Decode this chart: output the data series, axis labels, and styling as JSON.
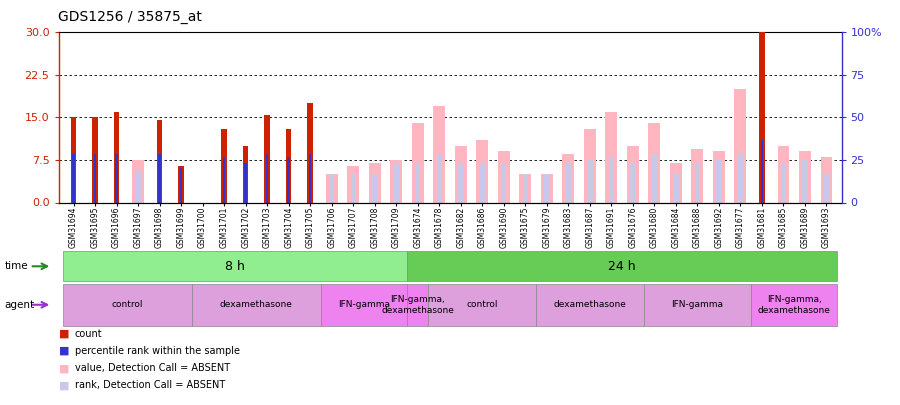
{
  "title": "GDS1256 / 35875_at",
  "samples": [
    "GSM31694",
    "GSM31695",
    "GSM31696",
    "GSM31697",
    "GSM31698",
    "GSM31699",
    "GSM31700",
    "GSM31701",
    "GSM31702",
    "GSM31703",
    "GSM31704",
    "GSM31705",
    "GSM31706",
    "GSM31707",
    "GSM31708",
    "GSM31709",
    "GSM31674",
    "GSM31678",
    "GSM31682",
    "GSM31686",
    "GSM31690",
    "GSM31675",
    "GSM31679",
    "GSM31683",
    "GSM31687",
    "GSM31691",
    "GSM31676",
    "GSM31680",
    "GSM31684",
    "GSM31688",
    "GSM31692",
    "GSM31677",
    "GSM31681",
    "GSM31685",
    "GSM31689",
    "GSM31693"
  ],
  "count": [
    15,
    15,
    16,
    0,
    14.5,
    6.5,
    0,
    13,
    10,
    15.5,
    13,
    17.5,
    0,
    0,
    0,
    0,
    0,
    0,
    0,
    0,
    0,
    0,
    0,
    0,
    0,
    0,
    0,
    0,
    0,
    0,
    0,
    0,
    30,
    0,
    0,
    0
  ],
  "percentile": [
    8.5,
    8.5,
    8.5,
    0,
    8.5,
    6,
    0,
    8,
    7,
    8.5,
    8,
    8.5,
    0,
    0,
    0,
    0,
    0,
    0,
    0,
    0,
    0,
    0,
    0,
    0,
    0,
    0,
    0,
    0,
    0,
    0,
    0,
    0,
    11,
    0,
    0,
    0
  ],
  "absent_value": [
    0,
    0,
    0,
    7.5,
    0,
    0,
    0,
    0,
    0,
    0,
    0,
    0,
    5,
    6.5,
    7,
    7.5,
    14,
    17,
    10,
    11,
    9,
    5,
    5,
    8.5,
    13,
    16,
    10,
    14,
    7,
    9.5,
    9,
    20,
    0,
    10,
    9,
    8
  ],
  "absent_rank": [
    0,
    0,
    0,
    5.5,
    0,
    0,
    0,
    0,
    0,
    0,
    0,
    0,
    5,
    5,
    5,
    7,
    7,
    8.5,
    7,
    7,
    7,
    5,
    5,
    7,
    7.5,
    8,
    7,
    8.5,
    5,
    7,
    7.5,
    8.5,
    0,
    7,
    7.5,
    5
  ],
  "ylim_left": [
    0,
    30
  ],
  "ylim_right": [
    0,
    100
  ],
  "yticks_left": [
    0,
    7.5,
    15,
    22.5,
    30
  ],
  "yticks_right": [
    0,
    25,
    50,
    75,
    100
  ],
  "ytick_labels_right": [
    "0",
    "25",
    "50",
    "75",
    "100%"
  ],
  "color_count": "#CC2200",
  "color_percentile": "#3333CC",
  "color_absent_value": "#FFB6C1",
  "color_absent_rank": "#C8C8E8",
  "legend_items": [
    {
      "label": "count",
      "color": "#CC2200"
    },
    {
      "label": "percentile rank within the sample",
      "color": "#3333CC"
    },
    {
      "label": "value, Detection Call = ABSENT",
      "color": "#FFB6C1"
    },
    {
      "label": "rank, Detection Call = ABSENT",
      "color": "#C8C8E8"
    }
  ],
  "time_groups": [
    {
      "label": "8 h",
      "start": 0,
      "end": 16,
      "color": "#90EE90"
    },
    {
      "label": "24 h",
      "start": 16,
      "end": 36,
      "color": "#66CC55"
    }
  ],
  "agent_groups": [
    {
      "label": "control",
      "start": 0,
      "end": 6,
      "color": "#DDA0DD"
    },
    {
      "label": "dexamethasone",
      "start": 6,
      "end": 12,
      "color": "#DDA0DD"
    },
    {
      "label": "IFN-gamma",
      "start": 12,
      "end": 16,
      "color": "#EE82EE"
    },
    {
      "label": "IFN-gamma,\ndexamethasone",
      "start": 16,
      "end": 17,
      "color": "#EE82EE"
    },
    {
      "label": "control",
      "start": 17,
      "end": 22,
      "color": "#DDA0DD"
    },
    {
      "label": "dexamethasone",
      "start": 22,
      "end": 27,
      "color": "#DDA0DD"
    },
    {
      "label": "IFN-gamma",
      "start": 27,
      "end": 32,
      "color": "#DDA0DD"
    },
    {
      "label": "IFN-gamma,\ndexamethasone",
      "start": 32,
      "end": 36,
      "color": "#EE82EE"
    }
  ]
}
